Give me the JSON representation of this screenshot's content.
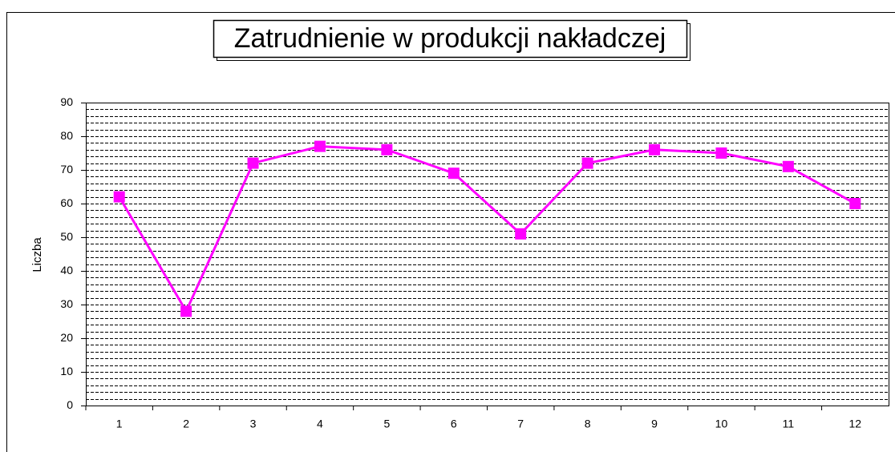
{
  "chart_data": {
    "type": "line",
    "title": "Zatrudnienie w produkcji nakładczej",
    "ylabel": "Liczba",
    "categories": [
      "1",
      "2",
      "3",
      "4",
      "5",
      "6",
      "7",
      "8",
      "9",
      "10",
      "11",
      "12"
    ],
    "series": [
      {
        "color": "#ff00ff",
        "values": [
          62,
          28,
          72,
          77,
          76,
          69,
          51,
          72,
          76,
          75,
          71,
          60
        ]
      }
    ],
    "ylim": [
      0,
      90
    ],
    "yticks": [
      0,
      10,
      20,
      30,
      40,
      50,
      60,
      70,
      80,
      90
    ],
    "grid": true
  }
}
